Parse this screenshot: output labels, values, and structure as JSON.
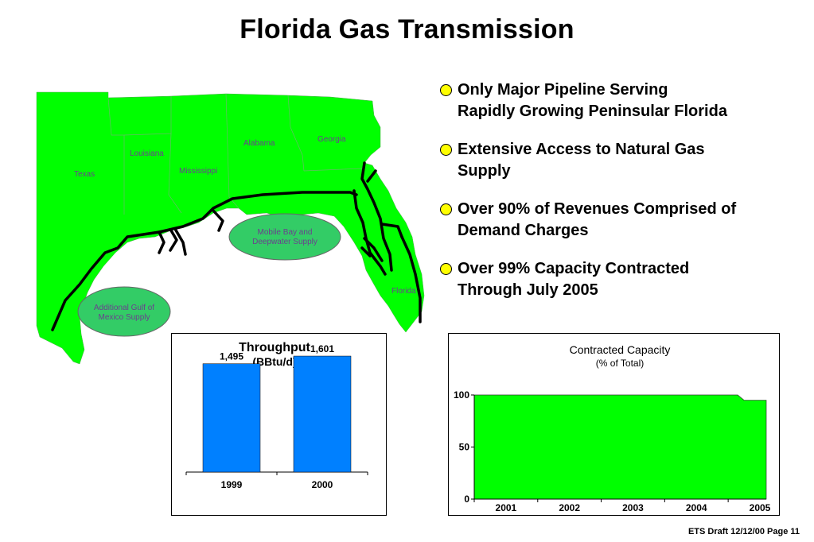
{
  "title": "Florida Gas Transmission",
  "map": {
    "states": [
      "Texas",
      "Louisiana",
      "Mississippi",
      "Alabama",
      "Georgia",
      "Florida"
    ],
    "supply_regions": [
      {
        "line1": "Mobile Bay and",
        "line2": "Deepwater Supply"
      },
      {
        "line1": "Additional Gulf of",
        "line2": "Mexico Supply"
      }
    ],
    "colors": {
      "land": "#00ff00",
      "supply": "#33cc66",
      "pipeline": "#000000",
      "label": "#6b3f8f"
    }
  },
  "bullets": [
    {
      "line1": "Only Major Pipeline Serving",
      "line2": "Rapidly Growing Peninsular Florida"
    },
    {
      "line1": "Extensive Access to Natural Gas",
      "line2": "Supply"
    },
    {
      "line1": "Over 90% of Revenues Comprised of",
      "line2": "Demand Charges"
    },
    {
      "line1": "Over 99% Capacity Contracted",
      "line2": "Through July 2005"
    }
  ],
  "footer": "ETS Draft 12/12/00 Page 11",
  "chart_data": [
    {
      "type": "bar",
      "title": "Throughput",
      "subtitle": "(BBtu/d)",
      "categories": [
        "1999",
        "2000"
      ],
      "values": [
        1495,
        1601
      ],
      "value_labels": [
        "1,495",
        "1,601"
      ],
      "color": "#0080ff",
      "ylim": [
        0,
        1700
      ]
    },
    {
      "type": "area",
      "title": "Contracted Capacity",
      "subtitle": "(% of Total)",
      "x_ticks": [
        "2001",
        "2002",
        "2003",
        "2004",
        "2005"
      ],
      "y_ticks": [
        "0",
        "50",
        "100"
      ],
      "ylim": [
        0,
        100
      ],
      "xlim": [
        2001,
        2005.6
      ],
      "x": [
        2001.0,
        2005.15,
        2005.25,
        2005.6
      ],
      "y": [
        100,
        100,
        95,
        95
      ],
      "color": "#00ff00"
    }
  ]
}
